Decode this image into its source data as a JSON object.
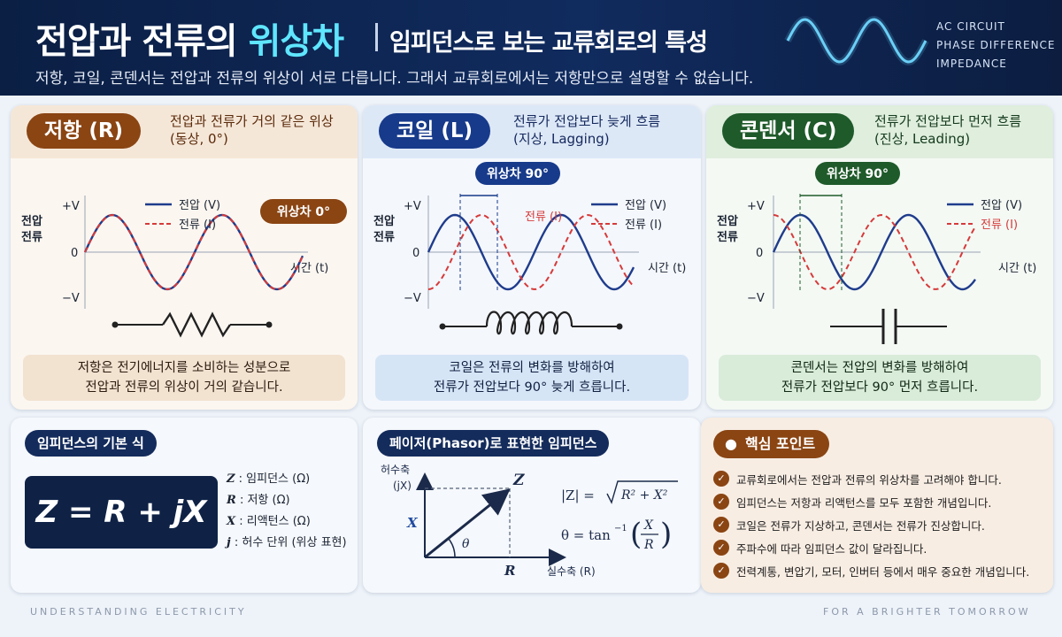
{
  "header": {
    "title_main": "전압과 전류의 ",
    "title_highlight": "위상차",
    "subtitle": "임피던스로 보는 교류회로의 특성",
    "description": "저항, 코일, 콘덴서는 전압과 전류의 위상이 서로 다릅니다. 그래서 교류회로에서는 저항만으로 설명할 수 없습니다.",
    "tags": [
      "AC CIRCUIT",
      "PHASE DIFFERENCE",
      "IMPEDANCE"
    ]
  },
  "colors": {
    "voltage": "#1f3c8c",
    "current": "#d63a3a",
    "resistor_accent": "#8a4513",
    "coil_accent": "#173a8a",
    "capacitor_accent": "#1f5a2a",
    "header_bg": "#0b1f44",
    "highlight": "#5fe6ff"
  },
  "axis": {
    "plus_v": "+V",
    "zero": "0",
    "minus_v": "−V",
    "y_label_1": "전압",
    "y_label_2": "전류",
    "x_label": "시간 (t)"
  },
  "legend": {
    "voltage": "전압 (V)",
    "current": "전류 (I)"
  },
  "panels": {
    "resistor": {
      "name": "저항 (R)",
      "phase_line1": "전압과 전류가 거의 같은 위상",
      "phase_line2": "(동상, 0°)",
      "badge": "위상차 0°",
      "phase_deg": 0,
      "desc_line1": "저항은 전기에너지를 소비하는 성분으로",
      "desc_line2": "전압과 전류의 위상이 거의 같습니다."
    },
    "coil": {
      "name": "코일 (L)",
      "phase_line1": "전류가 전압보다 늦게 흐름",
      "phase_line2": "(지상, Lagging)",
      "badge": "위상차 90°",
      "phase_deg": -90,
      "current_tag": "전류 (I)",
      "desc_line1": "코일은 전류의 변화를 방해하여",
      "desc_line2": "전류가 전압보다 90° 늦게 흐릅니다."
    },
    "capacitor": {
      "name": "콘덴서 (C)",
      "phase_line1": "전류가 전압보다 먼저 흐름",
      "phase_line2": "(진상, Leading)",
      "badge": "위상차 90°",
      "phase_deg": 90,
      "desc_line1": "콘덴서는 전압의 변화를 방해하여",
      "desc_line2": "전류가 전압보다 90° 먼저 흐릅니다."
    }
  },
  "impedance": {
    "title": "임피던스의 기본 식",
    "formula": "Z = R + jX",
    "defs": [
      {
        "sym": "Z",
        "text": ": 임피던스 (Ω)"
      },
      {
        "sym": "R",
        "text": ": 저항 (Ω)"
      },
      {
        "sym": "X",
        "text": ": 리액턴스 (Ω)"
      },
      {
        "sym": "j",
        "text": ": 허수 단위 (위상 표현)"
      }
    ]
  },
  "phasor": {
    "title": "페이저(Phasor)로 표현한 임피던스",
    "imag_axis_1": "허수축",
    "imag_axis_2": "(jX)",
    "real_axis": "실수축 (R)",
    "z": "Z",
    "x": "X",
    "r": "R",
    "theta": "θ",
    "mag_lhs": "|Z| = ",
    "mag_rhs": "R² + X²",
    "angle_lhs": "θ = tan",
    "angle_exp": "−1",
    "angle_num": "X",
    "angle_den": "R"
  },
  "key_points": {
    "title": "핵심 포인트",
    "items": [
      "교류회로에서는 전압과 전류의 위상차를 고려해야 합니다.",
      "임피던스는 저항과 리액턴스를 모두 포함한 개념입니다.",
      "코일은 전류가 지상하고, 콘덴서는 전류가 진상합니다.",
      "주파수에 따라 임피던스 값이 달라집니다.",
      "전력계통, 변압기, 모터, 인버터 등에서 매우 중요한 개념입니다."
    ]
  },
  "footer": {
    "left": "UNDERSTANDING ELECTRICITY",
    "right": "FOR A BRIGHTER TOMORROW"
  }
}
